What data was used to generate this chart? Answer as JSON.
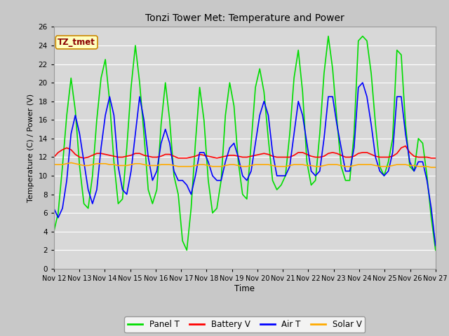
{
  "title": "Tonzi Tower Met: Temperature and Power",
  "ylabel": "Temperature (C) / Power (V)",
  "xlabel": "Time",
  "annotation": "TZ_tmet",
  "ylim": [
    0,
    26
  ],
  "yticks": [
    0,
    2,
    4,
    6,
    8,
    10,
    12,
    14,
    16,
    18,
    20,
    22,
    24,
    26
  ],
  "x_labels": [
    "Nov 12",
    "Nov 13",
    "Nov 14",
    "Nov 15",
    "Nov 16",
    "Nov 17",
    "Nov 18",
    "Nov 19",
    "Nov 20",
    "Nov 21",
    "Nov 22",
    "Nov 23",
    "Nov 24",
    "Nov 25",
    "Nov 26",
    "Nov 27"
  ],
  "n_days": 15,
  "fig_bg": "#c8c8c8",
  "plot_bg": "#d8d8d8",
  "grid_color": "#ffffff",
  "series": {
    "panel_t": {
      "color": "#00dd00",
      "label": "Panel T",
      "linewidth": 1.2
    },
    "battery_v": {
      "color": "#ff0000",
      "label": "Battery V",
      "linewidth": 1.2
    },
    "air_t": {
      "color": "#0000ff",
      "label": "Air T",
      "linewidth": 1.2
    },
    "solar_v": {
      "color": "#ffaa00",
      "label": "Solar V",
      "linewidth": 1.2
    }
  },
  "panel_t": [
    4.0,
    6.0,
    11.0,
    16.5,
    20.5,
    17.0,
    11.0,
    7.0,
    6.5,
    10.0,
    16.0,
    20.5,
    22.5,
    18.0,
    11.5,
    7.0,
    7.5,
    13.0,
    19.5,
    24.0,
    20.0,
    14.5,
    8.5,
    7.0,
    8.5,
    15.5,
    20.0,
    16.0,
    10.0,
    8.0,
    3.0,
    2.0,
    6.5,
    13.5,
    19.5,
    16.0,
    9.5,
    6.0,
    6.5,
    9.5,
    16.5,
    20.0,
    17.5,
    11.5,
    8.0,
    7.5,
    13.5,
    19.5,
    21.5,
    19.0,
    14.0,
    9.5,
    8.5,
    9.0,
    10.0,
    14.5,
    20.5,
    23.5,
    19.0,
    11.5,
    9.0,
    9.5,
    14.5,
    21.0,
    25.0,
    21.5,
    16.0,
    11.0,
    9.5,
    9.5,
    14.5,
    24.5,
    25.0,
    24.5,
    21.0,
    15.5,
    11.0,
    10.0,
    11.5,
    14.0,
    23.5,
    23.0,
    15.5,
    11.0,
    10.5,
    14.0,
    13.5,
    10.0,
    5.5,
    2.0
  ],
  "air_t": [
    6.5,
    5.5,
    6.5,
    9.5,
    14.5,
    16.5,
    14.5,
    11.5,
    8.5,
    7.0,
    8.5,
    13.0,
    16.5,
    18.5,
    16.5,
    11.0,
    8.5,
    8.0,
    10.5,
    14.5,
    18.5,
    16.0,
    12.0,
    9.5,
    10.5,
    13.5,
    15.0,
    13.5,
    10.5,
    9.5,
    9.5,
    9.0,
    8.0,
    10.0,
    12.5,
    12.5,
    11.5,
    10.0,
    9.5,
    9.5,
    11.5,
    13.0,
    13.5,
    12.0,
    10.0,
    9.5,
    10.5,
    13.5,
    16.5,
    18.0,
    16.5,
    12.5,
    10.0,
    10.0,
    10.0,
    11.0,
    14.5,
    18.0,
    16.5,
    13.5,
    10.5,
    10.0,
    10.5,
    14.0,
    18.5,
    18.5,
    15.5,
    13.0,
    10.5,
    10.5,
    13.0,
    19.5,
    20.0,
    18.5,
    15.5,
    12.0,
    10.5,
    10.0,
    10.5,
    12.5,
    18.5,
    18.5,
    14.5,
    11.5,
    10.5,
    11.5,
    11.5,
    9.5,
    6.5,
    2.5
  ],
  "battery_v": [
    12.0,
    12.5,
    12.8,
    13.0,
    12.8,
    12.3,
    12.0,
    11.9,
    12.0,
    12.2,
    12.4,
    12.4,
    12.3,
    12.2,
    12.1,
    12.0,
    12.0,
    12.1,
    12.2,
    12.4,
    12.4,
    12.2,
    12.1,
    12.0,
    12.0,
    12.1,
    12.3,
    12.3,
    12.1,
    11.9,
    11.9,
    11.9,
    12.0,
    12.1,
    12.3,
    12.2,
    12.1,
    12.0,
    11.9,
    12.0,
    12.1,
    12.2,
    12.2,
    12.1,
    12.0,
    12.0,
    12.1,
    12.2,
    12.3,
    12.4,
    12.3,
    12.1,
    12.0,
    12.0,
    12.0,
    12.0,
    12.2,
    12.5,
    12.5,
    12.3,
    12.1,
    12.0,
    12.0,
    12.1,
    12.4,
    12.5,
    12.4,
    12.2,
    12.0,
    12.0,
    12.1,
    12.4,
    12.5,
    12.5,
    12.3,
    12.1,
    12.0,
    12.0,
    12.0,
    12.1,
    12.4,
    13.0,
    13.2,
    12.5,
    12.1,
    12.0,
    12.0,
    12.0,
    11.9,
    11.9
  ],
  "solar_v": [
    11.2,
    11.2,
    11.2,
    11.3,
    11.4,
    11.3,
    11.2,
    11.1,
    11.1,
    11.2,
    11.3,
    11.3,
    11.3,
    11.2,
    11.2,
    11.1,
    11.1,
    11.1,
    11.2,
    11.3,
    11.3,
    11.2,
    11.1,
    11.1,
    11.1,
    11.2,
    11.2,
    11.2,
    11.1,
    11.0,
    11.0,
    11.0,
    11.0,
    11.1,
    11.2,
    11.2,
    11.1,
    11.0,
    11.0,
    11.0,
    11.1,
    11.2,
    11.2,
    11.1,
    11.0,
    11.0,
    11.1,
    11.2,
    11.2,
    11.2,
    11.2,
    11.1,
    11.0,
    11.0,
    11.0,
    11.1,
    11.2,
    11.2,
    11.2,
    11.1,
    11.1,
    11.0,
    11.0,
    11.1,
    11.2,
    11.2,
    11.2,
    11.1,
    11.0,
    11.0,
    11.1,
    11.2,
    11.2,
    11.2,
    11.2,
    11.1,
    11.0,
    11.0,
    11.0,
    11.1,
    11.2,
    11.2,
    11.2,
    11.1,
    11.1,
    11.0,
    11.0,
    11.0,
    10.9,
    10.9
  ]
}
